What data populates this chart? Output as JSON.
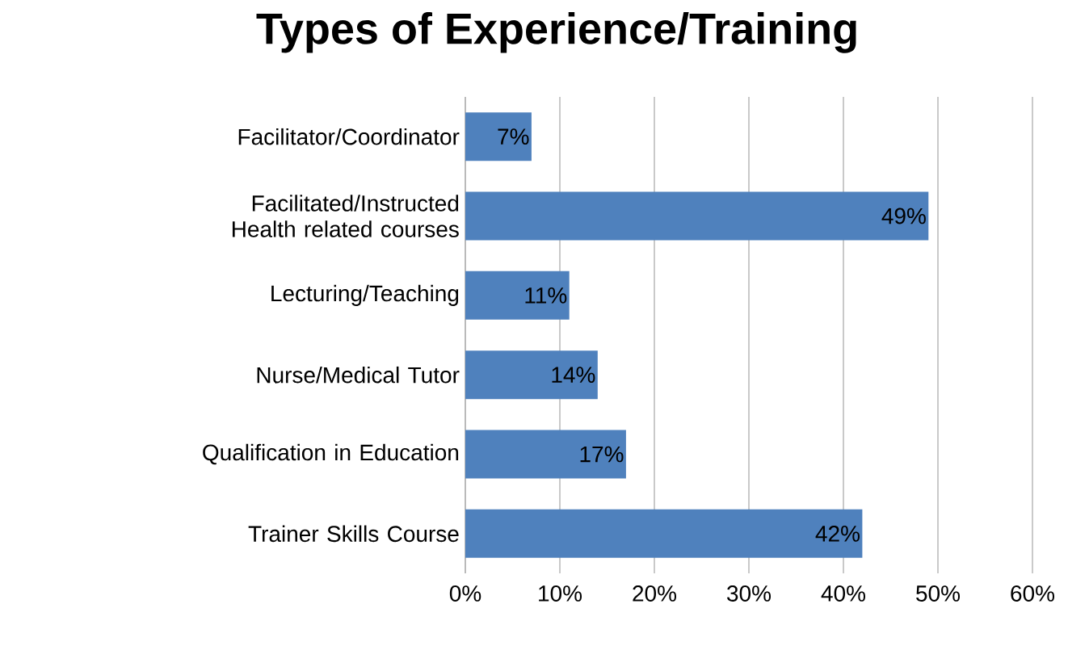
{
  "chart_data": {
    "type": "bar",
    "orientation": "horizontal",
    "title": "Types of Experience/Training",
    "categories": [
      "Facilitator/Coordinator",
      "Facilitated/Instructed Health related courses",
      "Lecturing/Teaching",
      "Nurse/Medical Tutor",
      "Qualification in Education",
      "Trainer Skills Course"
    ],
    "values": [
      7,
      49,
      11,
      14,
      17,
      42
    ],
    "value_labels": [
      "7%",
      "49%",
      "11%",
      "14%",
      "17%",
      "42%"
    ],
    "color": "#4f81bd",
    "xlim": [
      0,
      60
    ],
    "xticks": [
      {
        "value": 0,
        "label": "0%"
      },
      {
        "value": 10,
        "label": "10%"
      },
      {
        "value": 20,
        "label": "20%"
      },
      {
        "value": 30,
        "label": "30%"
      },
      {
        "value": 40,
        "label": "40%"
      },
      {
        "value": 50,
        "label": "50%"
      },
      {
        "value": 60,
        "label": "60%"
      }
    ],
    "grid": "x"
  }
}
